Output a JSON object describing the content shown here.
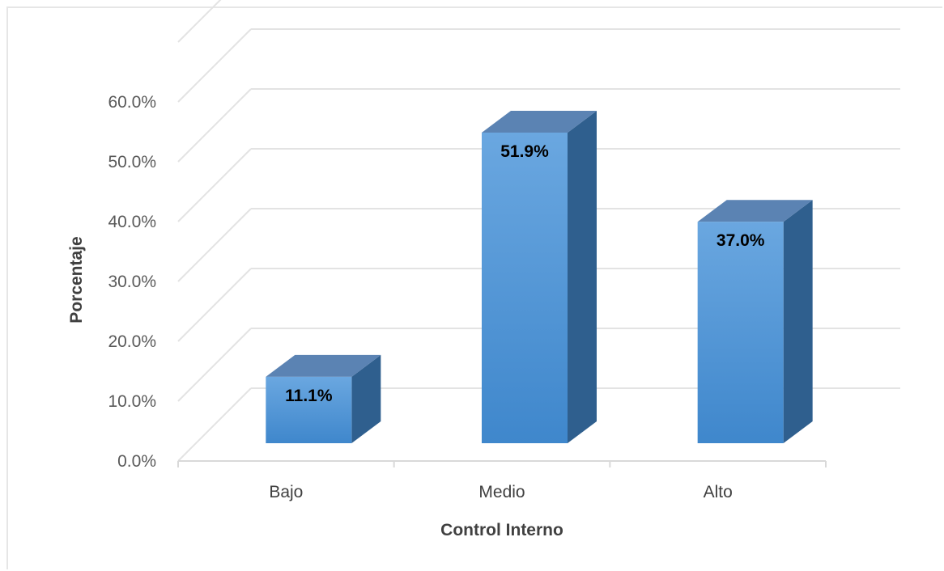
{
  "chart_data": {
    "type": "bar",
    "categories": [
      "Bajo",
      "Medio",
      "Alto"
    ],
    "values": [
      11.1,
      51.9,
      37.0
    ],
    "data_labels": [
      "11.1%",
      "51.9%",
      "37.0%"
    ],
    "xlabel": "Control Interno",
    "ylabel": "Porcentaje",
    "ylim": [
      0,
      60
    ],
    "yticks": [
      "0.0%",
      "10.0%",
      "20.0%",
      "30.0%",
      "40.0%",
      "50.0%",
      "60.0%"
    ],
    "grid": true,
    "style": "3d-column",
    "colors": {
      "bar_front_top": "#6aa7e0",
      "bar_front_bottom": "#3f87cc",
      "bar_top": "#5b83b3",
      "bar_side": "#2f5f8e",
      "grid": "#e3e3e3",
      "axis": "#d9d9d9"
    }
  }
}
